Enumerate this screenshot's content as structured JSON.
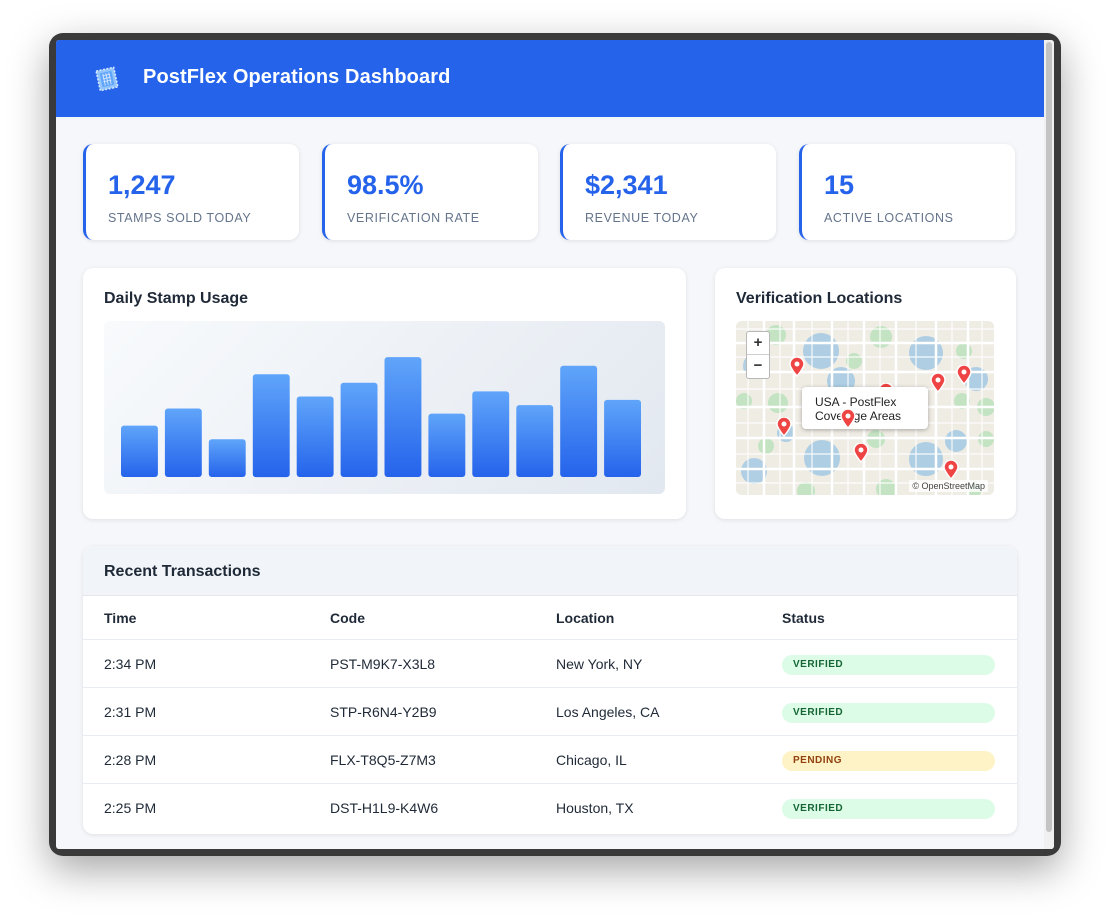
{
  "header": {
    "title": "PostFlex Operations Dashboard"
  },
  "stats": [
    {
      "value": "1,247",
      "label": "STAMPS SOLD TODAY"
    },
    {
      "value": "98.5%",
      "label": "VERIFICATION RATE"
    },
    {
      "value": "$2,341",
      "label": "REVENUE TODAY"
    },
    {
      "value": "15",
      "label": "ACTIVE LOCATIONS"
    }
  ],
  "usage": {
    "title": "Daily Stamp Usage",
    "chart_data": {
      "type": "bar",
      "values": [
        30,
        40,
        22,
        60,
        47,
        55,
        70,
        37,
        50,
        42,
        65,
        45
      ],
      "ylim": [
        0,
        80
      ],
      "bar_color": "#3b82f6"
    }
  },
  "map": {
    "title": "Verification Locations",
    "zoom_in": "+",
    "zoom_out": "−",
    "popup_line1": "USA - PostFlex",
    "popup_line2": "Coverage Areas",
    "attribution": "© OpenStreetMap",
    "marker_color": "#ef4444"
  },
  "transactions": {
    "title": "Recent Transactions",
    "columns": [
      "Time",
      "Code",
      "Location",
      "Status"
    ],
    "rows": [
      {
        "time": "2:34 PM",
        "code": "PST-M9K7-X3L8",
        "location": "New York, NY",
        "status": "VERIFIED"
      },
      {
        "time": "2:31 PM",
        "code": "STP-R6N4-Y2B9",
        "location": "Los Angeles, CA",
        "status": "VERIFIED"
      },
      {
        "time": "2:28 PM",
        "code": "FLX-T8Q5-Z7M3",
        "location": "Chicago, IL",
        "status": "PENDING"
      },
      {
        "time": "2:25 PM",
        "code": "DST-H1L9-K4W6",
        "location": "Houston, TX",
        "status": "VERIFIED"
      }
    ]
  },
  "colors": {
    "accent": "#2563eb",
    "verified_bg": "#dcfce7",
    "pending_bg": "#fef3c7"
  }
}
